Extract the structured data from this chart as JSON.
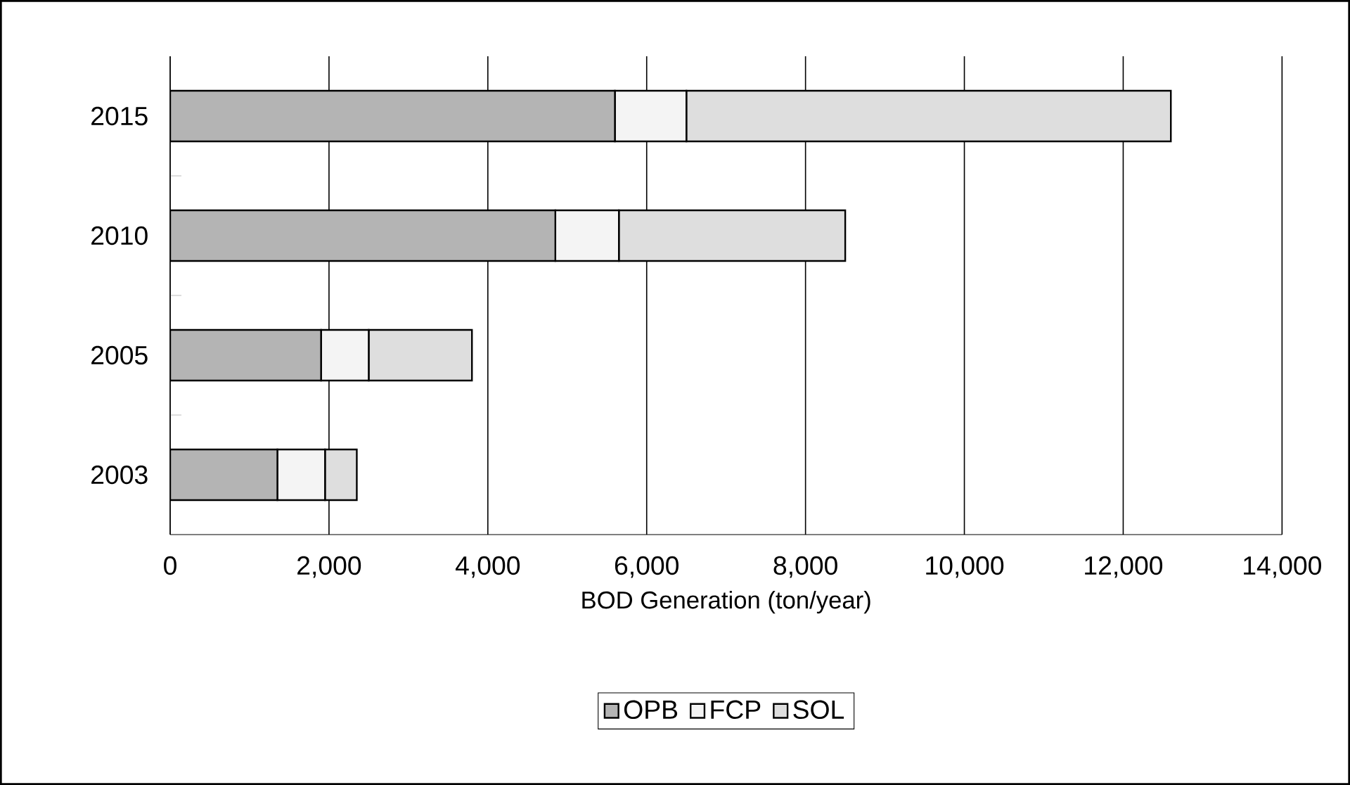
{
  "chart_data": {
    "type": "bar",
    "orientation": "horizontal",
    "stacked": true,
    "xlabel": "BOD Generation (ton/year)",
    "categories": [
      "2015",
      "2010",
      "2005",
      "2003"
    ],
    "series": [
      {
        "name": "OPB",
        "color": "#b4b4b4",
        "values": [
          5600,
          4850,
          1900,
          1350
        ]
      },
      {
        "name": "FCP",
        "color": "#f4f4f4",
        "values": [
          900,
          800,
          600,
          600
        ]
      },
      {
        "name": "SOL",
        "color": "#dedede",
        "values": [
          6100,
          2850,
          1300,
          400
        ]
      }
    ],
    "xlim": [
      0,
      14000
    ],
    "xticks": [
      0,
      {
        "value": 2000,
        "label": "2,000"
      },
      {
        "value": 4000,
        "label": "4,000"
      },
      {
        "value": 6000,
        "label": "6,000"
      },
      {
        "value": 8000,
        "label": "8,000"
      },
      {
        "value": 10000,
        "label": "10,000"
      },
      {
        "value": 12000,
        "label": "12,000"
      },
      {
        "value": 14000,
        "label": "14,000"
      }
    ],
    "grid": "x",
    "legend": "bottom"
  }
}
